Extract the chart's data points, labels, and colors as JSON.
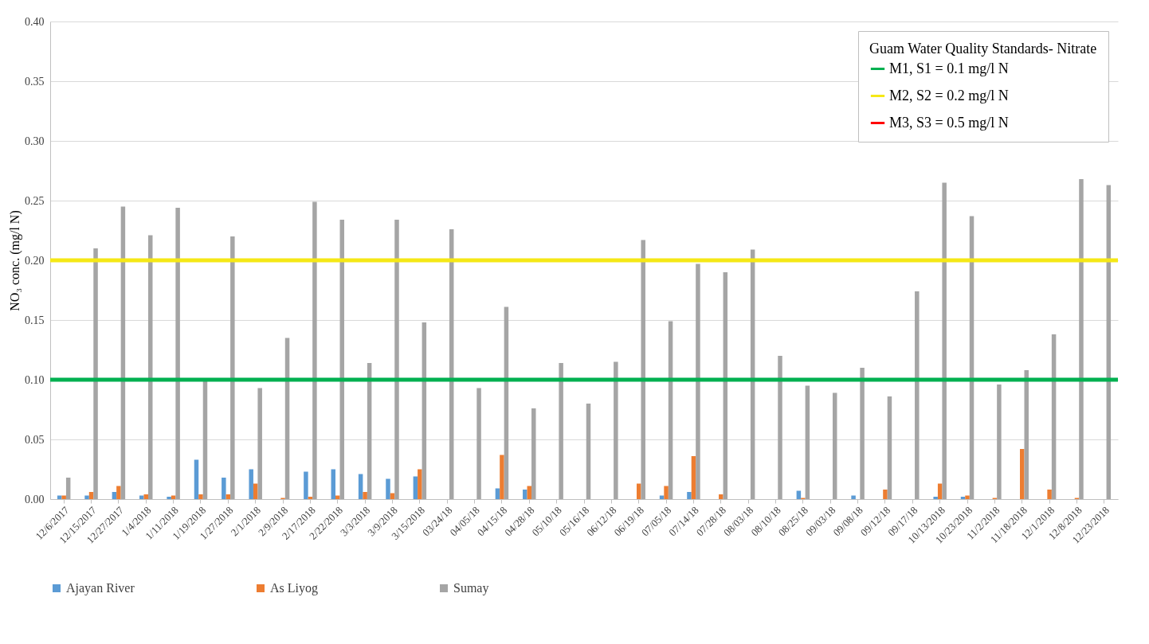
{
  "chart_data": {
    "type": "bar",
    "ylabel": "NO₃ conc.  (mg/l N)",
    "legend_title": "Guam Water Quality Standards- Nitrate",
    "categories": [
      "12/6/2017",
      "12/15/2017",
      "12/27/2017",
      "1/4/2018",
      "1/11/2018",
      "1/19/2018",
      "1/27/2018",
      "2/1/2018",
      "2/9/2018",
      "2/17/2018",
      "2/22/2018",
      "3/3/2018",
      "3/9/2018",
      "3/15/2018",
      "03/24/18",
      "04/05/18",
      "04/15/18",
      "04/28/18",
      "05/10/18",
      "05/16/18",
      "06/12/18",
      "06/19/18",
      "07/05/18",
      "07/14/18",
      "07/28/18",
      "08/03/18",
      "08/10/18",
      "08/25/18",
      "09/03/18",
      "09/08/18",
      "09/12/18",
      "09/17/18",
      "10/13/2018",
      "10/23/2018",
      "11/2/2018",
      "11/18/2018",
      "12/1/2018",
      "12/8/2018",
      "12/23/2018"
    ],
    "series": [
      {
        "name": "Ajayan River",
        "color": "#5b9bd5",
        "values": [
          0.003,
          0.003,
          0.006,
          0.003,
          0.002,
          0.033,
          0.018,
          0.025,
          0,
          0.023,
          0.025,
          0.021,
          0.017,
          0.019,
          0,
          0,
          0.009,
          0.008,
          0,
          0,
          0,
          0,
          0.003,
          0.006,
          0,
          0,
          0,
          0.007,
          0,
          0.003,
          0,
          0,
          0.002,
          0.002,
          0,
          0,
          0,
          0,
          0
        ]
      },
      {
        "name": "As Liyog",
        "color": "#ed7d31",
        "values": [
          0.003,
          0.006,
          0.011,
          0.004,
          0.003,
          0.004,
          0.004,
          0.013,
          0.001,
          0.002,
          0.003,
          0.006,
          0.005,
          0.025,
          0,
          0,
          0.037,
          0.011,
          0,
          0,
          0,
          0.013,
          0.011,
          0.036,
          0.004,
          0,
          0,
          0.001,
          0,
          0,
          0.008,
          0,
          0.013,
          0.003,
          0.001,
          0.042,
          0.008,
          0.001,
          0
        ]
      },
      {
        "name": "Sumay",
        "color": "#a5a5a5",
        "values": [
          0.018,
          0.21,
          0.245,
          0.221,
          0.244,
          0.099,
          0.22,
          0.093,
          0.135,
          0.249,
          0.234,
          0.114,
          0.234,
          0.148,
          0.226,
          0.093,
          0.161,
          0.076,
          0.114,
          0.08,
          0.115,
          0.217,
          0.149,
          0.197,
          0.19,
          0.209,
          0.12,
          0.095,
          0.089,
          0.11,
          0.086,
          0.174,
          0.265,
          0.237,
          0.096,
          0.108,
          0.138,
          0.268,
          0.263
        ]
      }
    ],
    "ylim": [
      0,
      0.4
    ],
    "yticks": [
      {
        "value": 0,
        "label": "0.00"
      },
      {
        "value": 0.05,
        "label": "0.05"
      },
      {
        "value": 0.1,
        "label": "0.10"
      },
      {
        "value": 0.15,
        "label": "0.15"
      },
      {
        "value": 0.2,
        "label": "0.20"
      },
      {
        "value": 0.25,
        "label": "0.25"
      },
      {
        "value": 0.3,
        "label": "0.30"
      },
      {
        "value": 0.35,
        "label": "0.35"
      },
      {
        "value": 0.4,
        "label": "0.40"
      }
    ],
    "ref_lines": [
      {
        "axis": "y",
        "value": 0.1,
        "label": "M1, S1 = 0.1 mg/l N",
        "color": "#00b050"
      },
      {
        "axis": "y",
        "value": 0.2,
        "label": "M2, S2 = 0.2 mg/l N",
        "color": "#f5e816"
      }
    ],
    "annotations": [
      "M3, S3 = 0.5 mg/l N"
    ],
    "grid": "y",
    "legend": "bottom"
  }
}
